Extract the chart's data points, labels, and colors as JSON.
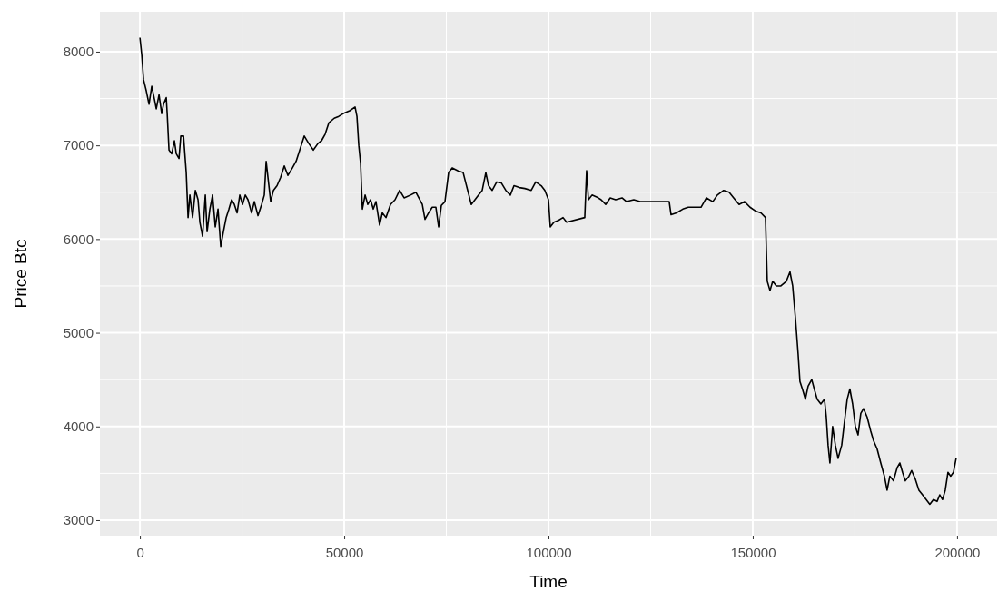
{
  "chart_data": {
    "type": "line",
    "xlabel": "Time",
    "ylabel": "Price Btc",
    "grid": true,
    "marker": "none",
    "line_style": "solid",
    "xlim": [
      -9800,
      209800
    ],
    "ylim": [
      2835,
      8426
    ],
    "xticks": [
      0,
      {
        "value": 25000,
        "label": null
      },
      50000,
      {
        "value": 75000,
        "label": null
      },
      100000,
      {
        "value": 125000,
        "label": null
      },
      150000,
      {
        "value": 175000,
        "label": null
      },
      200000
    ],
    "yticks": [
      3000,
      {
        "value": 3500,
        "label": null
      },
      4000,
      {
        "value": 4500,
        "label": null
      },
      5000,
      {
        "value": 5500,
        "label": null
      },
      6000,
      {
        "value": 6500,
        "label": null
      },
      7000,
      {
        "value": 7500,
        "label": null
      },
      8000
    ],
    "series": [
      {
        "color": "#000000",
        "x": [
          0,
          440,
          890,
          1560,
          2220,
          2890,
          3560,
          4000,
          4670,
          5330,
          5780,
          6440,
          6670,
          7110,
          7780,
          8440,
          8890,
          9560,
          10000,
          10670,
          11330,
          11780,
          12220,
          12890,
          13560,
          14220,
          14670,
          15330,
          16000,
          16440,
          17110,
          17780,
          18440,
          19110,
          19780,
          20440,
          21110,
          21780,
          22440,
          23110,
          23780,
          24440,
          25110,
          25780,
          26440,
          27330,
          28000,
          28890,
          29780,
          30440,
          30890,
          31560,
          32000,
          32670,
          33560,
          34440,
          35330,
          36220,
          37330,
          38220,
          39330,
          40220,
          41330,
          42440,
          43560,
          44440,
          45330,
          46220,
          47550,
          48660,
          49770,
          51330,
          52660,
          53110,
          53560,
          54000,
          54440,
          55110,
          55770,
          56440,
          57110,
          57770,
          58660,
          59330,
          60220,
          61330,
          62440,
          63560,
          64660,
          66220,
          67550,
          69110,
          69770,
          70660,
          71550,
          72440,
          73110,
          73780,
          74660,
          75550,
          76440,
          77770,
          79110,
          80220,
          81110,
          82000,
          82890,
          83780,
          84660,
          85330,
          86220,
          87330,
          88440,
          89550,
          90660,
          91550,
          92890,
          94220,
          95770,
          96880,
          98220,
          99110,
          100000,
          100440,
          101330,
          102440,
          103560,
          104440,
          108880,
          109330,
          109780,
          110660,
          111770,
          112880,
          114000,
          115110,
          116440,
          118000,
          119110,
          120880,
          122440,
          124000,
          125770,
          127550,
          129550,
          130000,
          131330,
          132880,
          134220,
          135770,
          137330,
          138660,
          140220,
          141330,
          142880,
          144220,
          145330,
          146660,
          148000,
          149330,
          150660,
          152000,
          153110,
          153550,
          154220,
          154880,
          155770,
          156880,
          158220,
          159110,
          159770,
          160440,
          161110,
          161550,
          162220,
          162880,
          163550,
          164440,
          165110,
          165770,
          166660,
          167550,
          168000,
          168440,
          168880,
          169550,
          170220,
          170880,
          171770,
          172440,
          173110,
          173770,
          174440,
          175110,
          175770,
          176440,
          177110,
          178000,
          178880,
          179550,
          180440,
          181330,
          182220,
          182880,
          183550,
          184440,
          185330,
          186000,
          186660,
          187330,
          188220,
          188880,
          189770,
          190660,
          191550,
          192440,
          193330,
          194220,
          195110,
          195770,
          196440,
          197110,
          197770,
          198440,
          199110,
          199770
        ],
        "values": [
          8150,
          7970,
          7700,
          7580,
          7440,
          7630,
          7490,
          7390,
          7540,
          7340,
          7440,
          7510,
          7340,
          6950,
          6910,
          7050,
          6910,
          6860,
          7100,
          7100,
          6710,
          6230,
          6470,
          6230,
          6520,
          6420,
          6180,
          6030,
          6470,
          6080,
          6320,
          6470,
          6130,
          6320,
          5920,
          6080,
          6230,
          6320,
          6420,
          6370,
          6280,
          6470,
          6370,
          6470,
          6420,
          6280,
          6400,
          6250,
          6370,
          6470,
          6830,
          6570,
          6400,
          6520,
          6570,
          6660,
          6780,
          6680,
          6760,
          6830,
          6980,
          7100,
          7020,
          6950,
          7020,
          7050,
          7120,
          7240,
          7290,
          7310,
          7340,
          7370,
          7410,
          7310,
          7000,
          6810,
          6320,
          6470,
          6370,
          6420,
          6320,
          6400,
          6150,
          6280,
          6230,
          6370,
          6420,
          6520,
          6440,
          6470,
          6500,
          6370,
          6210,
          6280,
          6340,
          6340,
          6130,
          6360,
          6400,
          6710,
          6760,
          6730,
          6710,
          6520,
          6370,
          6420,
          6470,
          6520,
          6710,
          6570,
          6520,
          6610,
          6600,
          6520,
          6470,
          6570,
          6550,
          6540,
          6520,
          6610,
          6570,
          6520,
          6420,
          6130,
          6180,
          6200,
          6230,
          6180,
          6230,
          6730,
          6420,
          6470,
          6450,
          6420,
          6370,
          6440,
          6420,
          6440,
          6400,
          6420,
          6400,
          6400,
          6400,
          6400,
          6400,
          6260,
          6280,
          6320,
          6340,
          6340,
          6340,
          6440,
          6400,
          6470,
          6520,
          6500,
          6440,
          6370,
          6400,
          6340,
          6300,
          6280,
          6230,
          5550,
          5450,
          5550,
          5500,
          5500,
          5550,
          5650,
          5500,
          5160,
          4770,
          4480,
          4390,
          4290,
          4430,
          4500,
          4390,
          4290,
          4240,
          4290,
          4100,
          3800,
          3610,
          4000,
          3800,
          3660,
          3800,
          4050,
          4290,
          4400,
          4240,
          4000,
          3910,
          4140,
          4190,
          4100,
          3950,
          3850,
          3760,
          3610,
          3470,
          3320,
          3470,
          3420,
          3560,
          3610,
          3510,
          3420,
          3470,
          3530,
          3440,
          3320,
          3270,
          3220,
          3170,
          3220,
          3200,
          3270,
          3220,
          3320,
          3510,
          3470,
          3510,
          3660
        ]
      }
    ]
  }
}
